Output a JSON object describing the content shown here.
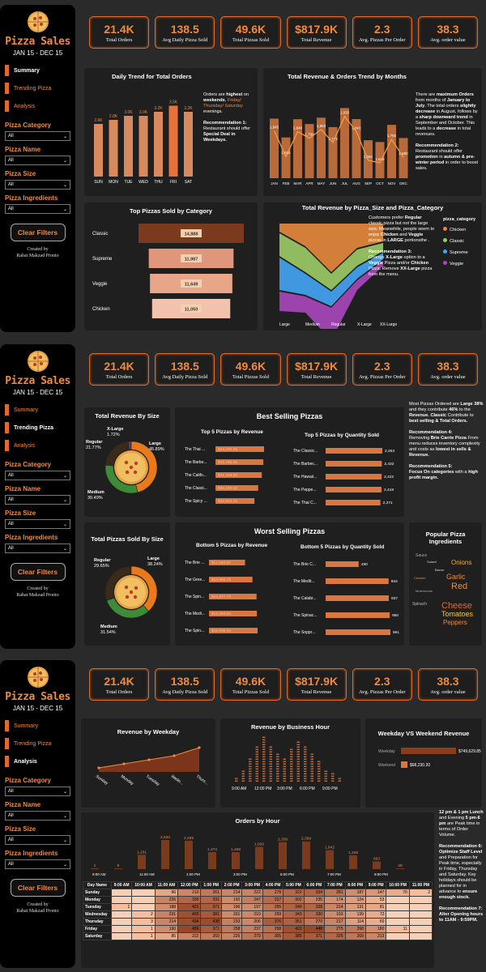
{
  "app": {
    "title": "Pizza Sales",
    "date_range": "JAN 15 - DEC 15",
    "created_by_label": "Created by",
    "author": "Rabat Makzad Pronto"
  },
  "nav": {
    "summary": "Summary",
    "trending": "Trending Pizza",
    "analysis": "Analysis"
  },
  "filters": {
    "category": "Pizza Category",
    "name": "Pizza Name",
    "size": "Pizza Size",
    "ingredients": "Pizza Ingredients",
    "all": "All",
    "clear": "Clear Filters"
  },
  "kpis": [
    {
      "value": "21.4K",
      "label": "Total Orders"
    },
    {
      "value": "138.5",
      "label": "Avg Daily Pizza Sold"
    },
    {
      "value": "49.6K",
      "label": "Total Pizzas Sold"
    },
    {
      "value": "$817.9K",
      "label": "Total Revenue"
    },
    {
      "value": "2.3",
      "label": "Avg. Pizzas Per Order"
    },
    {
      "value": "38.3",
      "label": "Avg. order value"
    }
  ],
  "colors": {
    "accent": "#f08a3c",
    "bar": "#d8773f",
    "dark": "#1f1f1f"
  },
  "page1": {
    "daily_title": "Daily Trend for Total Orders",
    "daily_text1a": "Orders are ",
    "daily_text1b": "highest",
    "daily_text1c": " on ",
    "daily_text1d": "weekends",
    "daily_text1e": ", ",
    "daily_text1f": "Friday/ Thursday/ Saturday",
    "daily_text1g": " evenings.",
    "daily_rec_h": "Recommendation 1:",
    "daily_rec_a": "Restaurant should offer ",
    "daily_rec_b": "Special Deal",
    "daily_rec_c": " in Weekdays.",
    "monthly_title": "Total Revenue & Orders Trend by Months",
    "monthly_text_a": "There are ",
    "monthly_text_b": "maximum Orders",
    "monthly_text_c": " from months of ",
    "monthly_text_d": "January to July",
    "monthly_text_e": ". The total orders ",
    "monthly_text_f": "slightly decrease",
    "monthly_text_g": " in August, follows by a ",
    "monthly_text_h": "sharp downward trend",
    "monthly_text_i": " in September and October. This leads to a ",
    "monthly_text_j": "decrease",
    "monthly_text_k": " in total revenues.",
    "monthly_rec_h": "Recommendation 2:",
    "monthly_rec_a": "Restaurant should offer ",
    "monthly_rec_b": "promotion",
    "monthly_rec_c": " in ",
    "monthly_rec_d": "autumn & pre-winter period",
    "monthly_rec_e": " in order to boost sales.",
    "category_title": "Top Pizzas Sold by Category",
    "sankey_title": "Total Revenue by Pizza_Size and Pizza_Category",
    "sankey_text_a": "Customers prefer ",
    "sankey_text_b": "Regular",
    "sankey_text_c": " classic pizza but not the large size. Meanwhile, people seem to enjoy ",
    "sankey_text_d": "Chicken",
    "sankey_text_e": " and ",
    "sankey_text_f": "Veggie",
    "sankey_text_g": " pizzas in ",
    "sankey_text_h": "LARGE",
    "sankey_text_i": " portionsthe .",
    "sankey_rec_h": "Recommendation 3:",
    "sankey_rec_a": "Change ",
    "sankey_rec_b": "X-Large",
    "sankey_rec_c": " option to a ",
    "sankey_rec_d": "Veggie",
    "sankey_rec_e": " Pizza and/or ",
    "sankey_rec_f": "Chicken",
    "sankey_rec_g": " Pizza. Remove ",
    "sankey_rec_h2": "XX-Large",
    "sankey_rec_i": " pizza from the menu.",
    "legend_title": "pizza_category"
  },
  "page2": {
    "rev_size_title": "Total Revenue By Size",
    "best_title": "Best Selling Pizzas",
    "top5_rev_title": "Top 5 Pizzas by Revenue",
    "top5_qty_title": "Top 5 Pizzas by Quantity Sold",
    "best_text_a": "Most Pizzas Ordered are ",
    "best_text_b": "Large",
    "best_text_c": " ",
    "best_text_d": "38%",
    "best_text_e": " and they contribute ",
    "best_text_f": "46%",
    "best_text_g": " to the ",
    "best_text_h": "Revenue.",
    "best_text_i": " ",
    "best_text_j": "Classic",
    "best_text_k": " Contribute to ",
    "best_text_l": "best selling & Total Orders.",
    "rec4_h": "Recommendation 4:",
    "rec4_a": "Removing ",
    "rec4_b": "Brie Carrie Pizza",
    "rec4_c": " From menu reduces inventory complexity and costs as ",
    "rec4_d": "lowest in sells & Revenue.",
    "rec5_h": "Recommendation 5:",
    "rec5_a": "Focus On categories",
    "rec5_b": " with a ",
    "rec5_c": "high profit margin.",
    "qty_size_title": "Total Pizzas Sold By Size",
    "worst_title": "Worst Selling Pizzas",
    "bot5_rev_title": "Bottom 5 Pizzas by Revenue",
    "bot5_qty_title": "Bottom 5 Pizzas by Quantity Sold",
    "ingredients_title": "Popular Pizza Ingredients"
  },
  "page3": {
    "weekday_title": "Revenue by Weekday",
    "hour_title": "Revenue by Business Hour",
    "week_title": "Weekday VS Weekend Revenue",
    "orders_hour_title": "Orders by Hour",
    "peak_a": "12 pm & 1 pm Lunch",
    "peak_b": " and  Evening ",
    "peak_c": "5 pm-6 pm",
    "peak_d": " are Peak time in terms of Order Volume.",
    "rec6_h": "Recommendation 6:",
    "rec6_a": "Optimize Staff Level",
    "rec6_b": " and Preparation for Peak time, especially in Friday, Thursday and Saturday. Key holidays should be planned for in advance to ",
    "rec6_c": "ensure enough stock.",
    "rec7_h": "Recommendation 7:",
    "rec7_a": "Alter Opening hours to 11AM - 9:59PM.",
    "table_header_day": "Day Name"
  },
  "chart_data": [
    {
      "id": "daily",
      "type": "bar",
      "title": "Daily Trend for Total Orders",
      "categories": [
        "SUN",
        "MON",
        "TUE",
        "WED",
        "THU",
        "FRI",
        "SAT"
      ],
      "values": [
        2.6,
        2.8,
        3.0,
        3.0,
        3.2,
        3.5,
        3.2
      ],
      "labels": [
        "2.6K",
        "2.8K",
        "3.0K",
        "3.0K",
        "3.2K",
        "3.5K",
        "3.2K"
      ],
      "ylim": [
        0,
        3.8
      ]
    },
    {
      "id": "monthly",
      "type": "bar",
      "title": "Total Revenue & Orders Trend by Months",
      "categories": [
        "JAN",
        "FEB",
        "MAR",
        "APR",
        "MAY",
        "JUN",
        "JUL",
        "AUG",
        "SEP",
        "OCT",
        "NOV",
        "DEC"
      ],
      "series": [
        {
          "values": [
            1845,
            1685,
            1840,
            1799,
            1853,
            1773,
            1935,
            1841,
            1661,
            1646,
            1792,
            1680
          ]
        }
      ],
      "labels": [
        "1,845",
        "1,685",
        "1,840",
        "1,799",
        "1,853",
        "1,773",
        "1,935",
        "1,841",
        "1,661",
        "1,646",
        "1,792",
        "1,680"
      ],
      "ylim": [
        1600,
        1960
      ]
    },
    {
      "id": "category",
      "type": "bar",
      "title": "Top Pizzas Sold by Category",
      "categories": [
        "Classic",
        "Supreme",
        "Veggie",
        "Chicken"
      ],
      "values": [
        14888,
        11987,
        11649,
        11050
      ],
      "labels": [
        "14,888",
        "11,987",
        "11,649",
        "11,050"
      ]
    },
    {
      "id": "sankey",
      "type": "area",
      "title": "Total Revenue by Pizza_Size and Pizza_Category",
      "sizes": [
        "Large",
        "Medium",
        "Regular",
        "X-Large",
        "XX-Large"
      ],
      "legend": [
        "Chicken",
        "Classic",
        "Supreme",
        "Veggie"
      ],
      "legend_colors": [
        "#e8893c",
        "#9ccc65",
        "#42a5f5",
        "#ab47bc"
      ]
    },
    {
      "id": "rev_size",
      "type": "pie",
      "title": "Total Revenue By Size",
      "slices": [
        {
          "label": "Large",
          "pct": "45.89%",
          "value": 45.89,
          "color": "#e87a1c"
        },
        {
          "label": "Medium",
          "pct": "30.49%",
          "value": 30.49,
          "color": "#3d8b37"
        },
        {
          "label": "Regular",
          "pct": "21.77%",
          "value": 21.77,
          "color": "#3a2a1a"
        },
        {
          "label": "X-Large",
          "pct": "1.72%",
          "value": 1.72,
          "color": "#5b3a8b"
        }
      ]
    },
    {
      "id": "top5_rev",
      "type": "bar",
      "title": "Top 5 Pizzas by Revenue",
      "categories": [
        "The Thai ...",
        "The Barbe...",
        "The Califo...",
        "The Classi...",
        "The Spicy ..."
      ],
      "values": [
        43434.25,
        42768.0,
        41409.5,
        38180.5,
        34831.25
      ],
      "labels": [
        "$43,434.25",
        "$42,768.00",
        "$41,409.50",
        "$38,180.50",
        "$34,831.25"
      ]
    },
    {
      "id": "top5_qty",
      "type": "bar",
      "title": "Top 5 Pizzas by Quantity Sold",
      "categories": [
        "The Classic...",
        "The Barbec...",
        "The Hawaii...",
        "The Peppe...",
        "The Thai C..."
      ],
      "values": [
        2453,
        2432,
        2422,
        2418,
        2371
      ],
      "labels": [
        "2,453",
        "2,432",
        "2,422",
        "2,418",
        "2,371"
      ]
    },
    {
      "id": "qty_size",
      "type": "pie",
      "title": "Total Pizzas Sold By Size",
      "slices": [
        {
          "label": "Large",
          "pct": "38.24%",
          "value": 38.24,
          "color": "#e87a1c"
        },
        {
          "label": "Medium",
          "pct": "31.54%",
          "value": 31.54,
          "color": "#3d8b37"
        },
        {
          "label": "Regular",
          "pct": "29.65%",
          "value": 29.65,
          "color": "#3a2a1a"
        }
      ]
    },
    {
      "id": "bot5_rev",
      "type": "bar",
      "title": "Bottom 5 Pizzas by Revenue",
      "categories": [
        "The Brie ...",
        "The Gree...",
        "The Spin...",
        "The Medi...",
        "The Spin..."
      ],
      "values": [
        11588.5,
        13955.75,
        15277.75,
        15360.5,
        15596.0
      ],
      "labels": [
        "$11,588.50",
        "$13,955.75",
        "$15,277.75",
        "$15,360.50",
        "$15,596.00"
      ]
    },
    {
      "id": "bot5_qty",
      "type": "bar",
      "title": "Bottom 5 Pizzas by Quantity Sold",
      "categories": [
        "The Brie C...",
        "The Medit...",
        "The Calabr...",
        "The Spinac...",
        "The Soppr..."
      ],
      "values": [
        490,
        934,
        937,
        950,
        961
      ],
      "labels": [
        "490",
        "934",
        "937",
        "950",
        "961"
      ]
    },
    {
      "id": "ingredients",
      "type": "table",
      "title": "Popular Pizza Ingredients",
      "words": [
        {
          "t": "Onions",
          "c": "#f0b030",
          "s": 8
        },
        {
          "t": "Garlic",
          "c": "#f08a3c",
          "s": 9
        },
        {
          "t": "Red",
          "c": "#f08a3c",
          "s": 11
        },
        {
          "t": "Cheese",
          "c": "#e06a2a",
          "s": 11
        },
        {
          "t": "Tomatoes",
          "c": "#f5c54a",
          "s": 9
        },
        {
          "t": "Peppers",
          "c": "#f08a3c",
          "s": 8
        },
        {
          "t": "Spinach",
          "c": "#bbb",
          "s": 5
        },
        {
          "t": "Sauce",
          "c": "#aaa",
          "s": 5
        },
        {
          "t": "Salami",
          "c": "#ccc",
          "s": 4
        },
        {
          "t": "Bacon",
          "c": "#ddd",
          "s": 4
        },
        {
          "t": "Chicken",
          "c": "#f08a3c",
          "s": 4
        },
        {
          "t": "Mushrooms",
          "c": "#aaa",
          "s": 4
        }
      ]
    },
    {
      "id": "weekday_rev",
      "type": "area",
      "title": "Revenue by Weekday",
      "categories": [
        "Sunday",
        "Monday",
        "Tuesday",
        "Wedn...",
        "Thurs..."
      ],
      "values": [
        1,
        2,
        3,
        4,
        6
      ]
    },
    {
      "id": "hour_rev",
      "type": "bar",
      "title": "Revenue by Business Hour",
      "ticks": [
        "9:00 AM",
        "12:00 PM",
        "3:00 PM",
        "6:00 PM",
        "9:00 PM"
      ],
      "values": [
        1,
        3,
        6,
        9,
        11,
        9,
        7,
        6,
        8,
        10,
        9,
        7,
        5,
        3,
        2,
        1
      ]
    },
    {
      "id": "weekvsweekend",
      "type": "bar",
      "title": "Weekday VS Weekend Revenue",
      "categories": [
        "Weekday",
        "Weekend"
      ],
      "values": [
        749629.85,
        68230.2
      ],
      "labels": [
        "$749,629.85",
        "$68,230.20"
      ]
    },
    {
      "id": "orders_hour",
      "type": "bar",
      "title": "Orders by Hour",
      "values": [
        1,
        8,
        1231,
        2520,
        2455,
        1472,
        1468,
        1920,
        2336,
        2399,
        1642,
        1198,
        663,
        28
      ],
      "labels": [
        "1",
        "8",
        "1,231",
        "2,520",
        "2,455",
        "1,472",
        "1,468",
        "1,920",
        "2,336",
        "2,399",
        "1,642",
        "1,198",
        "663",
        "28"
      ],
      "ticks": [
        "9:00 AM",
        "11:00 AM",
        "1:00 PM",
        "3:00 PM",
        "5:00 PM",
        "7:00 PM",
        "9:00 PM"
      ]
    },
    {
      "id": "orders_heatmap",
      "type": "heatmap",
      "title": "Orders by Hour",
      "hours": [
        "9:00 AM",
        "10:00 AM",
        "11:00 AM",
        "12:00 PM",
        "1:00 PM",
        "2:00 PM",
        "3:00 PM",
        "4:00 PM",
        "5:00 PM",
        "6:00 PM",
        "7:00 PM",
        "8:00 PM",
        "9:00 PM",
        "10:00 PM",
        "11:00 PM"
      ],
      "rows": [
        {
          "day": "Sunday",
          "vals": [
            "",
            "",
            "96",
            "210",
            "261",
            "214",
            "222",
            "278",
            "322",
            "334",
            "281",
            "187",
            "147",
            "70",
            "2"
          ]
        },
        {
          "day": "Monday",
          "vals": [
            "",
            "",
            "226",
            "330",
            "331",
            "192",
            "247",
            "317",
            "302",
            "235",
            "174",
            "124",
            "53",
            "",
            ""
          ]
        },
        {
          "day": "Tuesday",
          "vals": [
            "1",
            "",
            "188",
            "421",
            "371",
            "196",
            "197",
            "295",
            "349",
            "328",
            "214",
            "131",
            "81",
            "",
            ""
          ]
        },
        {
          "day": "Wednesday",
          "vals": [
            "",
            "2",
            "231",
            "420",
            "381",
            "201",
            "210",
            "259",
            "343",
            "330",
            "193",
            "139",
            "72",
            "",
            ""
          ]
        },
        {
          "day": "Thursday",
          "vals": [
            "",
            "3",
            "214",
            "434",
            "438",
            "233",
            "206",
            "376",
            "351",
            "270",
            "217",
            "114",
            "60",
            "",
            ""
          ]
        },
        {
          "day": "Friday",
          "vals": [
            "",
            "1",
            "190",
            "456",
            "372",
            "258",
            "237",
            "298",
            "422",
            "448",
            "275",
            "268",
            "180",
            "11",
            ""
          ]
        },
        {
          "day": "Saturday",
          "vals": [
            "",
            "1",
            "85",
            "222",
            "260",
            "226",
            "279",
            "305",
            "385",
            "371",
            "325",
            "269",
            "213",
            "",
            ""
          ]
        }
      ]
    }
  ]
}
